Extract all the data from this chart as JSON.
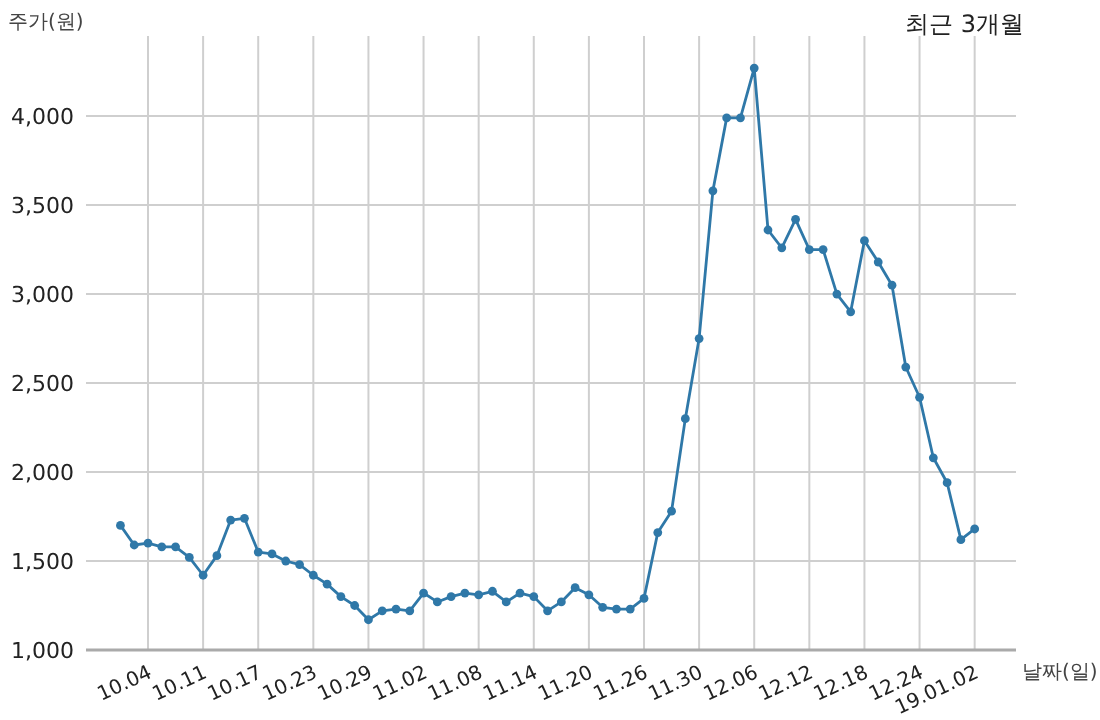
{
  "chart_data": {
    "type": "line",
    "title": "최근 3개월",
    "xlabel": "날짜(일)",
    "ylabel": "주가(원)",
    "categories": [
      null,
      null,
      "10.04",
      null,
      null,
      null,
      "10.11",
      null,
      null,
      null,
      "10.17",
      null,
      null,
      null,
      "10.23",
      null,
      null,
      null,
      "10.29",
      null,
      null,
      null,
      "11.02",
      null,
      null,
      null,
      "11.08",
      null,
      null,
      null,
      "11.14",
      null,
      null,
      null,
      "11.20",
      null,
      null,
      null,
      "11.26",
      null,
      null,
      null,
      "11.30",
      null,
      null,
      null,
      "12.06",
      null,
      null,
      null,
      "12.12",
      null,
      null,
      null,
      "12.18",
      null,
      null,
      null,
      "12.24",
      null,
      null,
      null,
      "19.01.02"
    ],
    "series": [
      {
        "color": "#2f78a8",
        "values": [
          1700,
          1590,
          1600,
          1580,
          1580,
          1520,
          1420,
          1530,
          1730,
          1740,
          1550,
          1540,
          1500,
          1480,
          1420,
          1370,
          1300,
          1250,
          1170,
          1220,
          1230,
          1220,
          1320,
          1270,
          1300,
          1320,
          1310,
          1330,
          1270,
          1320,
          1300,
          1220,
          1270,
          1350,
          1310,
          1240,
          1230,
          1230,
          1290,
          1660,
          1780,
          2300,
          2750,
          3580,
          3990,
          3990,
          4270,
          3360,
          3260,
          3420,
          3250,
          3250,
          3000,
          2900,
          3300,
          3180,
          3050,
          2590,
          2420,
          2080,
          1940,
          1620,
          1680
        ]
      }
    ],
    "ylim": [
      1000,
      4450
    ],
    "yticks": [
      {
        "value": 1000,
        "label": "1,000"
      },
      {
        "value": 1500,
        "label": "1,500"
      },
      {
        "value": 2000,
        "label": "2,000"
      },
      {
        "value": 2500,
        "label": "2,500"
      },
      {
        "value": 3000,
        "label": "3,000"
      },
      {
        "value": 3500,
        "label": "3,500"
      },
      {
        "value": 4000,
        "label": "4,000"
      }
    ],
    "grid": true,
    "marker": "circle",
    "line_style": "solid"
  }
}
